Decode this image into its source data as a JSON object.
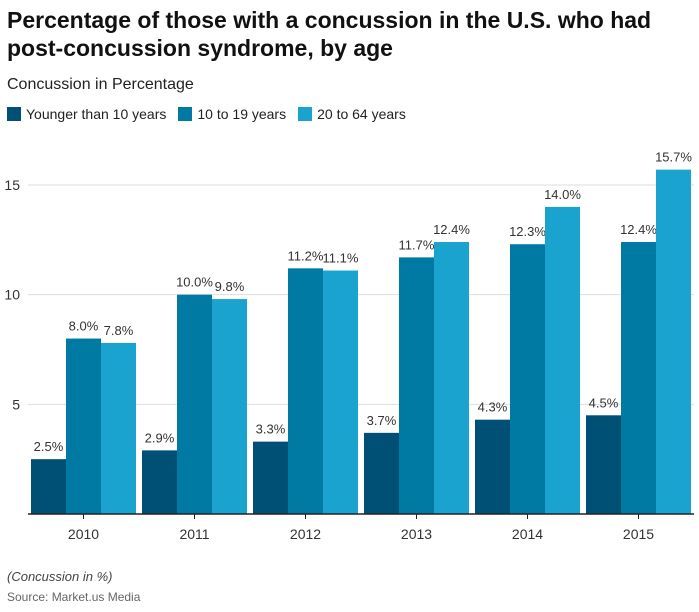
{
  "chart_data": {
    "type": "bar",
    "title": "Percentage of those with a concussion in the U.S. who had post-concussion syndrome, by age",
    "subtitle": "Concussion in Percentage",
    "categories": [
      "2010",
      "2011",
      "2012",
      "2013",
      "2014",
      "2015"
    ],
    "series": [
      {
        "name": "Younger than 10 years",
        "color": "#004f75",
        "values": [
          2.5,
          2.9,
          3.3,
          3.7,
          4.3,
          4.5
        ]
      },
      {
        "name": "10 to 19 years",
        "color": "#0079a3",
        "values": [
          8.0,
          10.0,
          11.2,
          11.7,
          12.3,
          12.4
        ]
      },
      {
        "name": "20 to 64 years",
        "color": "#1aa3cf",
        "values": [
          7.8,
          9.8,
          11.1,
          12.4,
          14.0,
          15.7
        ]
      }
    ],
    "yticks": [
      5,
      10,
      15
    ],
    "ylim": [
      0,
      15.7
    ],
    "grid": true,
    "legend_position": "top-left",
    "value_suffix": "%",
    "note": "(Concussion in %)",
    "source": "Source: Market.us Media"
  }
}
